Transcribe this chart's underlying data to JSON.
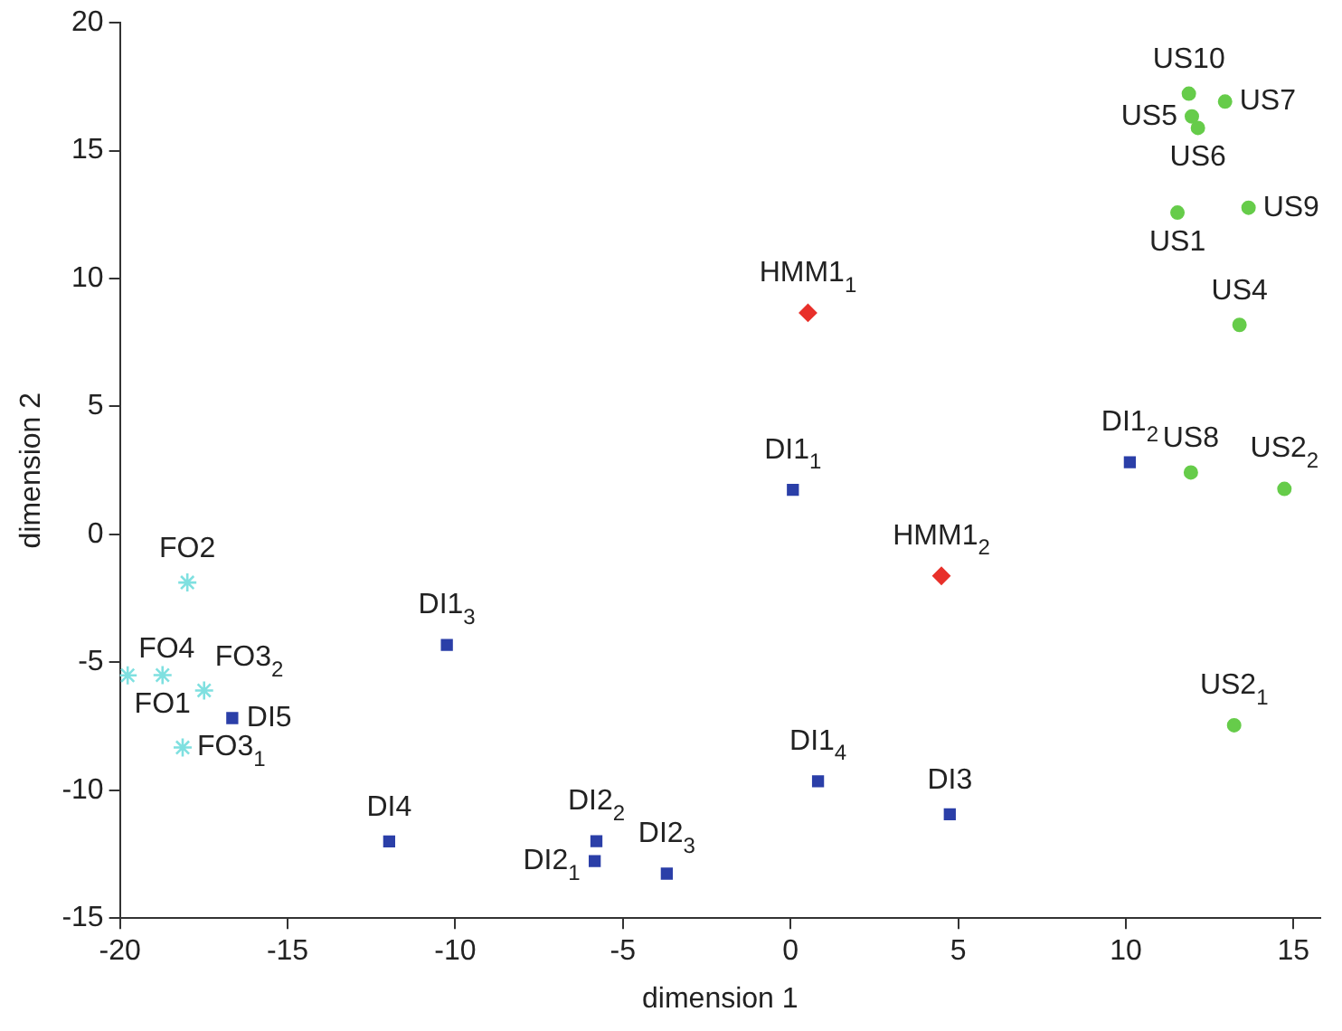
{
  "chart_data": {
    "type": "scatter",
    "xlabel": "dimension 1",
    "ylabel": "dimension 2",
    "xlim": [
      -20,
      15.8
    ],
    "xticks": [
      -20,
      -15,
      -10,
      -5,
      0,
      5,
      10,
      15
    ],
    "ylim": [
      -15,
      20
    ],
    "yticks": [
      -15,
      -10,
      -5,
      0,
      5,
      10,
      15,
      20
    ],
    "grid": false,
    "legend": false,
    "series": [
      {
        "color": "#7fe0e0",
        "marker": "cross",
        "x": [
          -17.99,
          -19.77,
          -18.73,
          -17.49,
          -18.13
        ],
        "values": [
          -1.88,
          -5.51,
          -5.5,
          -6.1,
          -8.33
        ]
      },
      {
        "color": "#2b3fa8",
        "marker": "square",
        "x": [
          -16.65,
          -10.25,
          -11.97,
          0.07,
          0.82,
          4.75,
          -5.79,
          -5.84,
          -3.69,
          10.12
        ],
        "values": [
          -7.18,
          -4.32,
          -12.0,
          1.74,
          -9.65,
          -10.94,
          -11.99,
          -12.77,
          -13.26,
          2.82
        ]
      },
      {
        "color": "#e8302a",
        "marker": "diamond",
        "x": [
          0.52,
          4.5
        ],
        "values": [
          8.66,
          -1.62
        ]
      },
      {
        "color": "#66cc4a",
        "marker": "circle",
        "x": [
          11.88,
          12.96,
          11.97,
          12.15,
          11.54,
          13.66,
          13.39,
          11.94,
          14.73,
          13.23
        ],
        "values": [
          17.23,
          16.92,
          16.34,
          15.89,
          12.58,
          12.77,
          8.19,
          2.42,
          1.78,
          -7.46
        ]
      }
    ],
    "annotations": [
      {
        "text": "FO2",
        "x": -17.99,
        "y": -1.88
      },
      {
        "text": "FO4",
        "x": -19.77,
        "y": -5.51
      },
      {
        "text": "FO1",
        "x": -18.73,
        "y": -5.5
      },
      {
        "text": "FO3$_{2}$",
        "x": -17.49,
        "y": -6.1
      },
      {
        "text": "FO3$_{1}$",
        "x": -18.13,
        "y": -8.33
      },
      {
        "text": "DI5",
        "x": -16.65,
        "y": -7.18
      },
      {
        "text": "DI1$_{3}$",
        "x": -10.25,
        "y": -4.32
      },
      {
        "text": "DI4",
        "x": -11.97,
        "y": -12.0
      },
      {
        "text": "HMM1$_{1}$",
        "x": 0.52,
        "y": 8.66
      },
      {
        "text": "DI1$_{1}$",
        "x": 0.07,
        "y": 1.74
      },
      {
        "text": "HMM1$_{2}$",
        "x": 4.5,
        "y": -1.62
      },
      {
        "text": "DI1$_{4}$",
        "x": 0.82,
        "y": -9.65
      },
      {
        "text": "DI3",
        "x": 4.75,
        "y": -10.94
      },
      {
        "text": "DI2$_{2}$",
        "x": -5.79,
        "y": -11.99
      },
      {
        "text": "DI2$_{1}$",
        "x": -5.84,
        "y": -12.77
      },
      {
        "text": "DI2$_{3}$",
        "x": -3.69,
        "y": -13.26
      },
      {
        "text": "US10",
        "x": 11.88,
        "y": 17.23
      },
      {
        "text": "US7",
        "x": 12.96,
        "y": 16.92
      },
      {
        "text": "US5",
        "x": 11.97,
        "y": 16.34
      },
      {
        "text": "US6",
        "x": 12.15,
        "y": 15.89
      },
      {
        "text": "US1",
        "x": 11.54,
        "y": 12.58
      },
      {
        "text": "US9",
        "x": 13.66,
        "y": 12.77
      },
      {
        "text": "US4",
        "x": 13.39,
        "y": 8.19
      },
      {
        "text": "DI1$_{2}$",
        "x": 10.12,
        "y": 2.82
      },
      {
        "text": "US8",
        "x": 11.94,
        "y": 2.42
      },
      {
        "text": "US2$_{2}$",
        "x": 14.73,
        "y": 1.78
      },
      {
        "text": "US2$_{1}$",
        "x": 13.23,
        "y": -7.46
      }
    ]
  }
}
